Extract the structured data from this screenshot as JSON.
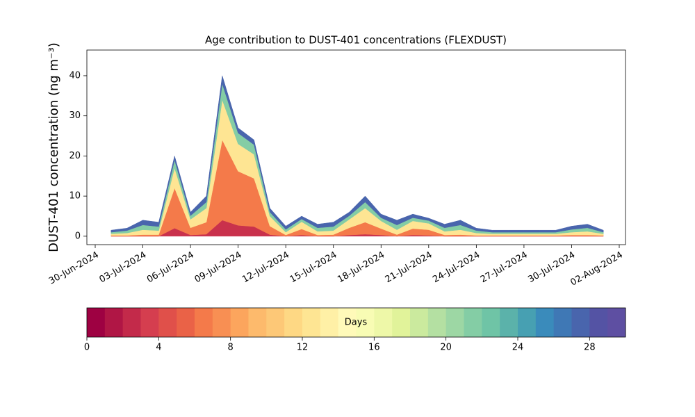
{
  "chart_data": [
    {
      "type": "stacked_area",
      "title": "Age contribution to DUST-401 concentrations (FLEXDUST)",
      "ylabel": "DUST-401 concentration (ng m⁻³)",
      "x": [
        "01-Jul-2024",
        "02-Jul-2024",
        "03-Jul-2024",
        "04-Jul-2024",
        "05-Jul-2024",
        "06-Jul-2024",
        "07-Jul-2024",
        "08-Jul-2024",
        "09-Jul-2024",
        "10-Jul-2024",
        "11-Jul-2024",
        "12-Jul-2024",
        "13-Jul-2024",
        "14-Jul-2024",
        "15-Jul-2024",
        "16-Jul-2024",
        "17-Jul-2024",
        "18-Jul-2024",
        "19-Jul-2024",
        "20-Jul-2024",
        "21-Jul-2024",
        "22-Jul-2024",
        "23-Jul-2024",
        "24-Jul-2024",
        "25-Jul-2024",
        "26-Jul-2024",
        "27-Jul-2024",
        "28-Jul-2024",
        "29-Jul-2024",
        "30-Jul-2024",
        "31-Jul-2024",
        "01-Aug-2024"
      ],
      "series": [
        {
          "color": "#c9314c",
          "values": [
            0,
            0,
            0,
            0,
            2,
            0.3,
            0.5,
            4,
            2.7,
            2.4,
            0.4,
            0,
            0.3,
            0,
            0,
            0.3,
            0.5,
            0.3,
            0,
            0.3,
            0.2,
            0,
            0,
            0,
            0,
            0,
            0,
            0,
            0,
            0,
            0,
            0
          ]
        },
        {
          "color": "#f47a4a",
          "values": [
            0.2,
            0.2,
            0.4,
            0.4,
            10,
            1.8,
            3,
            20,
            13.5,
            12,
            2.1,
            0.3,
            1.5,
            0.3,
            0.4,
            1.8,
            3,
            1.6,
            0.4,
            1.6,
            1.4,
            0.3,
            0.4,
            0.2,
            0.2,
            0.2,
            0.2,
            0.2,
            0.2,
            0.3,
            0.3,
            0.2
          ]
        },
        {
          "color": "#fee593",
          "values": [
            0.4,
            0.6,
            1.2,
            1,
            5,
            2.1,
            3.5,
            10,
            6.8,
            6,
            2.5,
            0.7,
            1.8,
            0.9,
            1,
            2.1,
            3.5,
            1.9,
            1.2,
            1.9,
            1.6,
            0.9,
            1.2,
            0.6,
            0.4,
            0.4,
            0.4,
            0.4,
            0.4,
            0.7,
            0.9,
            0.4
          ]
        },
        {
          "color": "#84cda5",
          "values": [
            0.4,
            0.6,
            1.2,
            1,
            2,
            0.9,
            1.5,
            4,
            2.7,
            2.4,
            1,
            0.7,
            0.7,
            0.9,
            1,
            0.9,
            1.5,
            0.8,
            1.2,
            0.8,
            0.7,
            0.9,
            1.2,
            0.6,
            0.4,
            0.4,
            0.4,
            0.4,
            0.4,
            0.7,
            0.9,
            0.4
          ]
        },
        {
          "color": "#4965ad",
          "values": [
            0.5,
            0.6,
            1.2,
            1.1,
            1,
            0.9,
            1.5,
            2,
            1.3,
            1.2,
            1,
            0.8,
            0.7,
            0.9,
            1.1,
            0.9,
            1.5,
            0.9,
            1.2,
            0.9,
            0.6,
            0.9,
            1.2,
            0.6,
            0.5,
            0.5,
            0.5,
            0.5,
            0.5,
            0.8,
            0.9,
            0.5
          ]
        }
      ],
      "xlim": [
        "30-Jun-2024",
        "02-Aug-2024"
      ],
      "xticks": [
        "30-Jun-2024",
        "03-Jul-2024",
        "06-Jul-2024",
        "09-Jul-2024",
        "12-Jul-2024",
        "15-Jul-2024",
        "18-Jul-2024",
        "21-Jul-2024",
        "24-Jul-2024",
        "27-Jul-2024",
        "30-Jul-2024",
        "02-Aug-2024"
      ],
      "ylim": [
        -2.1,
        46.4
      ],
      "yticks": [
        0,
        10,
        20,
        30,
        40
      ]
    },
    {
      "type": "colorbar",
      "label": "Days",
      "bins": [
        0,
        1,
        2,
        3,
        4,
        5,
        6,
        7,
        8,
        9,
        10,
        11,
        12,
        13,
        14,
        15,
        16,
        17,
        18,
        19,
        20,
        21,
        22,
        23,
        24,
        25,
        26,
        27,
        28,
        29,
        30
      ],
      "colors": [
        "#9e0142",
        "#b01645",
        "#c32a4a",
        "#d53e4f",
        "#e0504a",
        "#ea6247",
        "#f47a4a",
        "#f88f53",
        "#fca55d",
        "#fdba6c",
        "#fdc877",
        "#fed884",
        "#fee593",
        "#fff0a6",
        "#fffab9",
        "#f8fcb4",
        "#eef8a8",
        "#e1f39a",
        "#cbea9e",
        "#b4e0a2",
        "#9dd7a4",
        "#84cda5",
        "#6fc4a6",
        "#5bb2aa",
        "#47a0b2",
        "#3a8bbb",
        "#3f78b5",
        "#4965ad",
        "#5453a4",
        "#5e4fa2"
      ],
      "xlim": [
        0,
        30
      ],
      "xticks": [
        0,
        4,
        8,
        12,
        16,
        20,
        24,
        28
      ]
    }
  ]
}
